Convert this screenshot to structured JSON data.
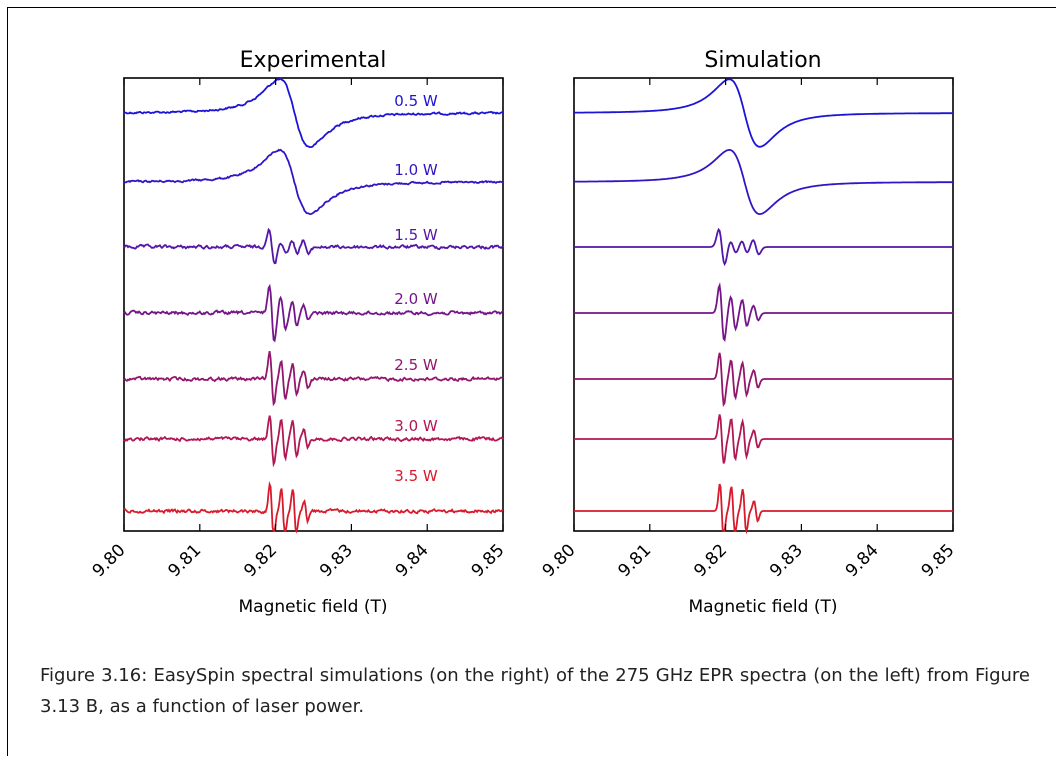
{
  "chart_data": [
    {
      "type": "line",
      "title": "Experimental",
      "xlabel": "Magnetic field (T)",
      "ylabel": "",
      "xlim": [
        9.8,
        9.85
      ],
      "xticks": [
        "9.80",
        "9.81",
        "9.82",
        "9.83",
        "9.84",
        "9.85"
      ],
      "grid": false,
      "noisy": true,
      "series": [
        {
          "name": "0.5 W",
          "color": "#1e14d6"
        },
        {
          "name": "1.0 W",
          "color": "#3215c4"
        },
        {
          "name": "1.5 W",
          "color": "#5316a8"
        },
        {
          "name": "2.0 W",
          "color": "#74168a"
        },
        {
          "name": "2.5 W",
          "color": "#92166b"
        },
        {
          "name": "3.0 W",
          "color": "#b11752"
        },
        {
          "name": "3.5 W",
          "color": "#d81a2c"
        }
      ]
    },
    {
      "type": "line",
      "title": "Simulation",
      "xlabel": "Magnetic field (T)",
      "ylabel": "",
      "xlim": [
        9.8,
        9.85
      ],
      "xticks": [
        "9.80",
        "9.81",
        "9.82",
        "9.83",
        "9.84",
        "9.85"
      ],
      "grid": false,
      "noisy": false,
      "series": [
        {
          "color": "#1e14d6"
        },
        {
          "color": "#3215c4"
        },
        {
          "color": "#5316a8"
        },
        {
          "color": "#74168a"
        },
        {
          "color": "#92166b"
        },
        {
          "color": "#b11752"
        },
        {
          "color": "#d81a2c"
        }
      ]
    }
  ],
  "caption": "Figure 3.16: EasySpin spectral simulations (on the right) of the 275 GHz EPR spectra (on the left) from Figure 3.13 B, as a function of laser power."
}
